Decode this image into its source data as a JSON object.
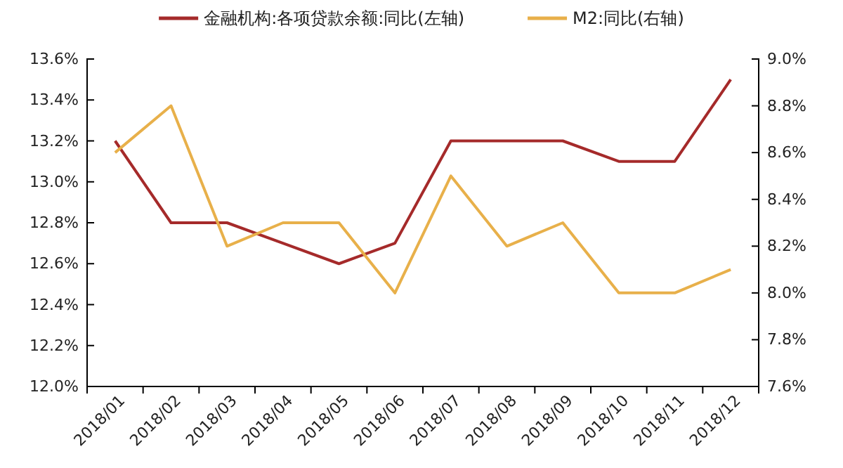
{
  "chart_data": {
    "type": "line",
    "categories": [
      "2018/01",
      "2018/02",
      "2018/03",
      "2018/04",
      "2018/05",
      "2018/06",
      "2018/07",
      "2018/08",
      "2018/09",
      "2018/10",
      "2018/11",
      "2018/12"
    ],
    "series": [
      {
        "name": "金融机构:各项贷款余额:同比(左轴)",
        "color": "#a52a2a",
        "values": [
          13.2,
          12.8,
          12.8,
          12.7,
          12.6,
          12.7,
          13.2,
          13.2,
          13.2,
          13.1,
          13.1,
          13.5
        ]
      },
      {
        "name": "M2:同比(右轴)",
        "color": "#e8b04a",
        "axis": "y2",
        "values": [
          8.6,
          8.8,
          8.2,
          8.3,
          8.3,
          8.0,
          8.5,
          8.2,
          8.3,
          8.0,
          8.0,
          8.1
        ]
      }
    ],
    "ylim": [
      12.0,
      13.6
    ],
    "yticks": [
      {
        "value": 12.0,
        "label": "12.0%"
      },
      {
        "value": 12.2,
        "label": "12.2%"
      },
      {
        "value": 12.4,
        "label": "12.4%"
      },
      {
        "value": 12.6,
        "label": "12.6%"
      },
      {
        "value": 12.8,
        "label": "12.8%"
      },
      {
        "value": 13.0,
        "label": "13.0%"
      },
      {
        "value": 13.2,
        "label": "13.2%"
      },
      {
        "value": 13.4,
        "label": "13.4%"
      },
      {
        "value": 13.6,
        "label": "13.6%"
      }
    ],
    "y2lim": [
      7.6,
      9.0
    ],
    "y2ticks": [
      {
        "value": 7.6,
        "label": "7.6%"
      },
      {
        "value": 7.8,
        "label": "7.8%"
      },
      {
        "value": 8.0,
        "label": "8.0%"
      },
      {
        "value": 8.2,
        "label": "8.2%"
      },
      {
        "value": 8.4,
        "label": "8.4%"
      },
      {
        "value": 8.6,
        "label": "8.6%"
      },
      {
        "value": 8.8,
        "label": "8.8%"
      },
      {
        "value": 9.0,
        "label": "9.0%"
      }
    ],
    "grid": false,
    "legend": "top",
    "marker": "none",
    "line_style": "solid"
  }
}
